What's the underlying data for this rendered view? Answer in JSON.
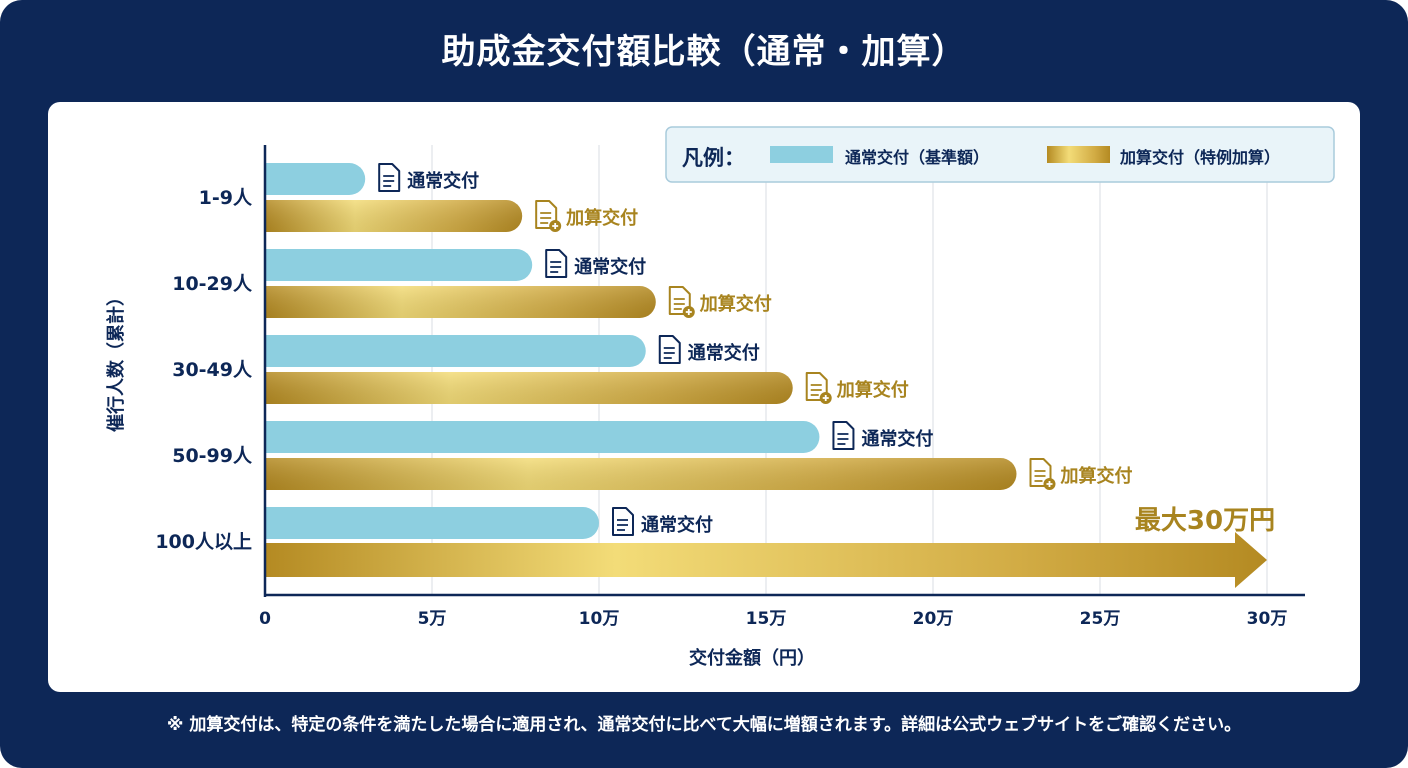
{
  "title": "助成金交付額比較（通常・加算）",
  "footnote": "※ 加算交付は、特定の条件を満たした場合に適用され、通常交付に比べて大幅に増額されます。詳細は公式ウェブサイトをご確認ください。",
  "chart_data": {
    "type": "bar",
    "orientation": "horizontal",
    "title": "助成金交付額比較（通常・加算）",
    "xlabel": "交付金額（円）",
    "ylabel": "催行人数（累計）",
    "xlim": [
      0,
      300000
    ],
    "xticks": [
      0,
      50000,
      100000,
      150000,
      200000,
      250000,
      300000
    ],
    "xtick_labels": [
      "0",
      "5万",
      "10万",
      "15万",
      "20万",
      "25万",
      "30万"
    ],
    "categories": [
      "1-9人",
      "10-29人",
      "30-49人",
      "50-99人",
      "100人以上"
    ],
    "series": [
      {
        "name": "通常交付（基準額）",
        "bar_label": "通常交付",
        "color": "#8dcfe0",
        "values": [
          30000,
          80000,
          114000,
          166000,
          100000
        ]
      },
      {
        "name": "加算交付（特例加算）",
        "bar_label": "加算交付",
        "color": "#c9a02e",
        "values": [
          77000,
          117000,
          158000,
          225000,
          300000
        ]
      }
    ],
    "legend": {
      "title": "凡例：",
      "placement": "top-right"
    },
    "annotation": "最大30万円",
    "grid": true
  },
  "colors": {
    "background": "#0d2757",
    "card": "#ffffff",
    "navy_text": "#0d2757",
    "gold_text": "#a8841f"
  }
}
